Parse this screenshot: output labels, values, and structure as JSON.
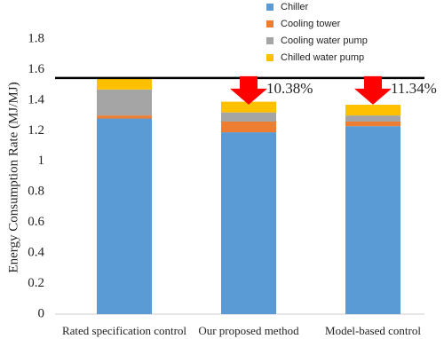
{
  "chart_data": {
    "type": "stacked-bar",
    "y_label": "Energy Consumption Rate (MJ/MJ)",
    "categories": [
      "Rated specification control",
      "Our proposed method",
      "Model-based control"
    ],
    "series": [
      {
        "name": "Chiller",
        "color": "#5b9bd5",
        "values": [
          1.28,
          1.19,
          1.23
        ]
      },
      {
        "name": "Cooling tower",
        "color": "#ed7d31",
        "values": [
          0.02,
          0.07,
          0.03
        ]
      },
      {
        "name": "Cooling water pump",
        "color": "#a5a5a5",
        "values": [
          0.17,
          0.06,
          0.04
        ]
      },
      {
        "name": "Chilled water pump",
        "color": "#ffc000",
        "values": [
          0.07,
          0.07,
          0.07
        ]
      }
    ],
    "reference_line": 1.545,
    "annotations": [
      "10.38%",
      "11.34%"
    ],
    "ylim": [
      0,
      1.8
    ],
    "yticks": [
      0,
      0.2,
      0.4,
      0.6,
      0.8,
      1,
      1.2,
      1.4,
      1.6,
      1.8
    ],
    "grid": false
  }
}
